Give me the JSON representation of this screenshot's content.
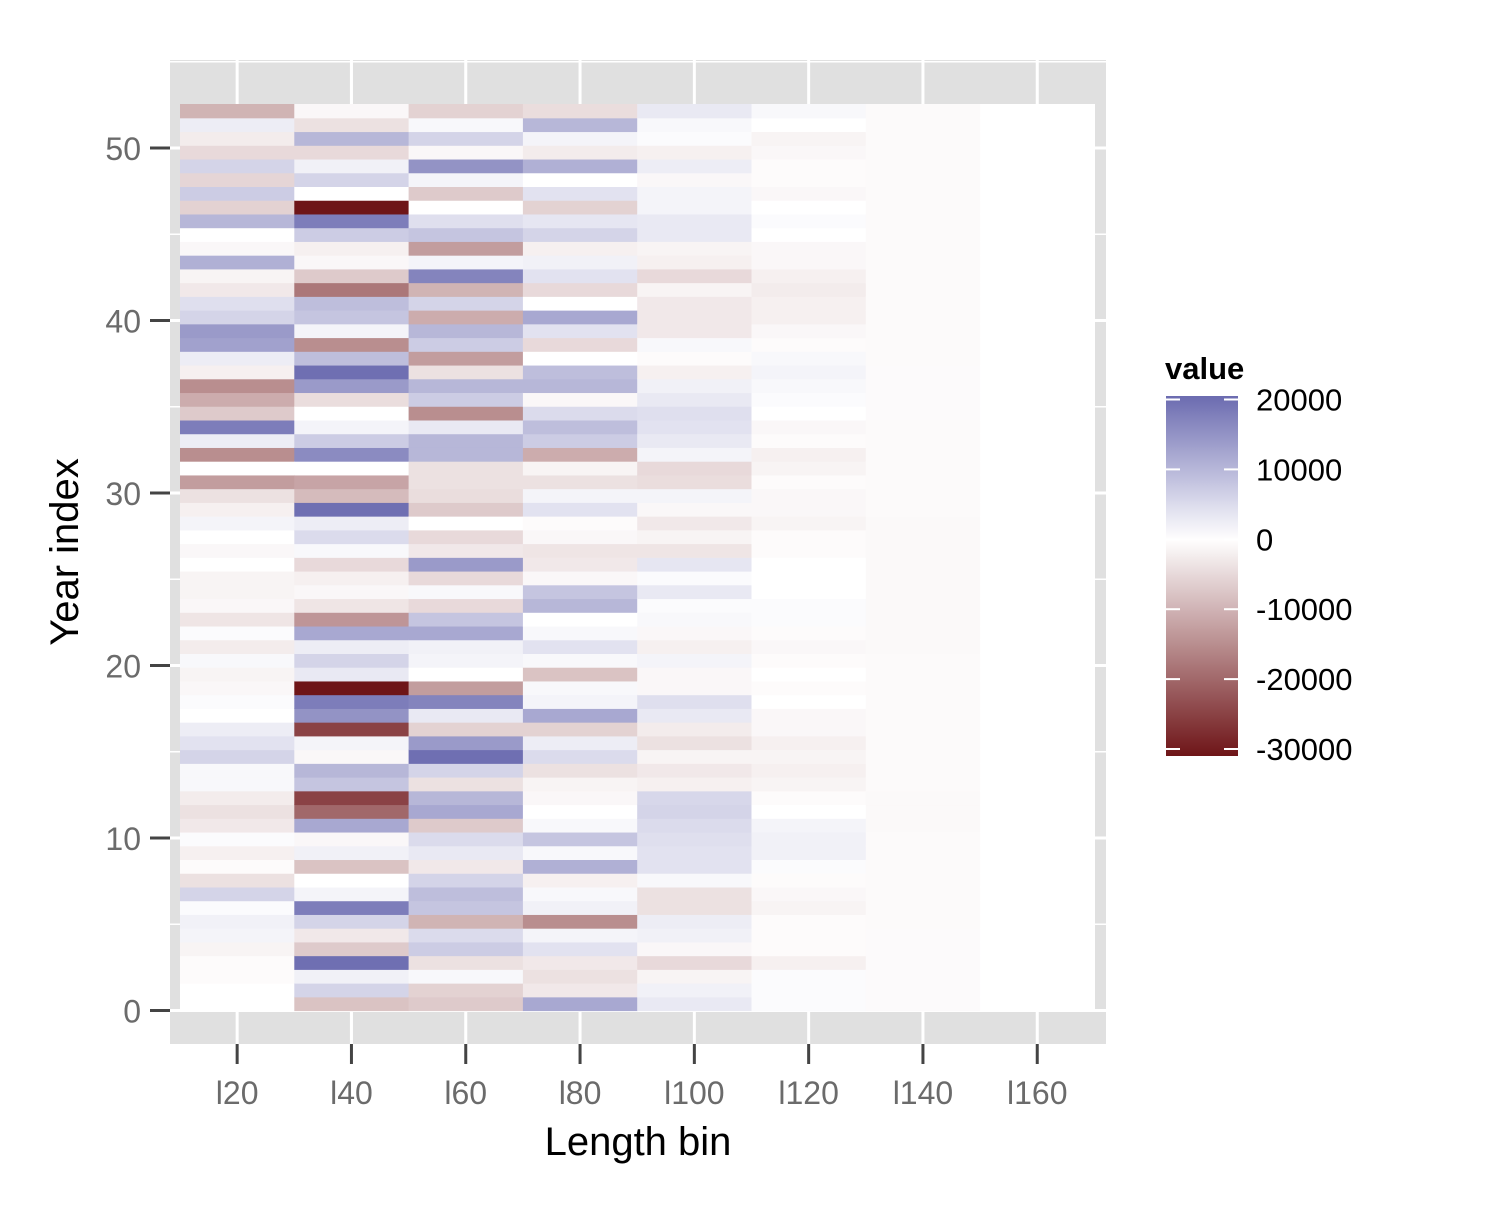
{
  "chart_data": {
    "type": "heatmap",
    "xlabel": "Length bin",
    "ylabel": "Year index",
    "categories": [
      "l20",
      "l40",
      "l60",
      "l80",
      "l100",
      "l120",
      "l140",
      "l160"
    ],
    "x_ticks": [
      "l20",
      "l40",
      "l60",
      "l80",
      "l100",
      "l120",
      "l140",
      "l160"
    ],
    "y_ticks": [
      0,
      10,
      20,
      30,
      40,
      50
    ],
    "ylim": [
      0,
      52
    ],
    "grid": true,
    "legend": {
      "title": "value",
      "position": "right",
      "ticks": [
        20000,
        10000,
        0,
        -10000,
        -20000,
        -30000
      ],
      "tick_labels": [
        "20000",
        "10000",
        "0",
        "-10000",
        "-20000",
        "-30000"
      ],
      "range": [
        -31000,
        20500
      ]
    },
    "colors": {
      "high": "#6b6bb0",
      "mid": "#ffffff",
      "low": "#6e1518",
      "panel": "#e0e0e0",
      "grid": "#ffffff",
      "tick_text": "#6b6b6b"
    },
    "columns": [
      {
        "bin": "l20",
        "values": [
          0,
          0,
          -500,
          -500,
          -1500,
          1500,
          2000,
          500,
          6000,
          -4000,
          -500,
          -2000,
          500,
          -3000,
          -4000,
          -2500,
          1000,
          1000,
          6000,
          4000,
          2500,
          0,
          500,
          -1000,
          -1500,
          1000,
          -2500,
          500,
          -3500,
          -1000,
          -1500,
          -1500,
          0,
          -1000,
          0,
          1500,
          -2000,
          -4000,
          -13000,
          0,
          -15000,
          2500,
          18000,
          -7000,
          -11000,
          -15000,
          -2000,
          2500,
          13000,
          14000,
          6000,
          4500,
          -3000,
          -1500,
          11000,
          -1000,
          0,
          10000,
          -6000,
          7000,
          -5500,
          6000,
          -5000,
          -2500,
          2500,
          -10000
        ]
      },
      {
        "bin": "l40",
        "values": [
          -8000,
          6000,
          2000,
          20000,
          -7000,
          -3000,
          6000,
          18000,
          1500,
          0,
          -8000,
          2000,
          -1000,
          12000,
          -20000,
          -25000,
          8000,
          10000,
          -1000,
          1500,
          -25000,
          15000,
          18000,
          -33000,
          3000,
          6000,
          2500,
          12000,
          -14000,
          -3500,
          -1000,
          -2000,
          -5000,
          1000,
          5000,
          2500,
          20000,
          -9000,
          -12000,
          0,
          16000,
          7000,
          1500,
          0,
          -4500,
          14000,
          20000,
          9000,
          -15000,
          1500,
          8000,
          9000,
          -18000,
          -7000,
          -1000,
          -2000,
          7000,
          18000,
          -35000,
          0,
          6000,
          2000,
          -5000,
          10000,
          -4000,
          -1000
        ]
      },
      {
        "bin": "l60",
        "values": [
          -7000,
          -6000,
          1000,
          -4000,
          7000,
          5000,
          -10000,
          8000,
          9000,
          6000,
          -3000,
          3000,
          5000,
          -7000,
          12000,
          10000,
          -4000,
          6000,
          20000,
          14000,
          -6000,
          3000,
          17000,
          -13000,
          0,
          1500,
          2000,
          12000,
          8000,
          -5000,
          1000,
          -5000,
          14000,
          -3000,
          -5000,
          0,
          -7000,
          -4500,
          -4000,
          -4000,
          10000,
          10000,
          3000,
          -15000,
          7000,
          10000,
          -4000,
          -13000,
          7000,
          10000,
          -11000,
          6000,
          -10000,
          17000,
          1500,
          -13000,
          8000,
          4500,
          0,
          -7000,
          1500,
          15000,
          -1000,
          6000,
          1000,
          -6000
        ]
      },
      {
        "bin": "l80",
        "values": [
          12000,
          -3000,
          -4000,
          -3000,
          4000,
          1500,
          -15000,
          2000,
          1000,
          -2000,
          11000,
          1000,
          8000,
          1000,
          0,
          -1000,
          -1500,
          -4000,
          5000,
          2500,
          -6000,
          12000,
          1500,
          1000,
          -8000,
          1000,
          4000,
          1000,
          0,
          10000,
          8000,
          -1000,
          -3000,
          -3500,
          -1000,
          -500,
          4000,
          1500,
          -4000,
          -1500,
          -11000,
          7000,
          9000,
          5000,
          -1000,
          10000,
          9000,
          0,
          -5000,
          4000,
          12000,
          0,
          -5000,
          4000,
          2000,
          -2000,
          6000,
          3500,
          -6000,
          4000,
          0,
          11000,
          -2500,
          1500,
          10000,
          -4500
        ]
      },
      {
        "bin": "l100",
        "values": [
          3000,
          2000,
          -1500,
          -5000,
          -1000,
          2000,
          2500,
          -4000,
          -4000,
          1000,
          4000,
          4000,
          4500,
          5000,
          6000,
          5500,
          -2000,
          -3000,
          -1500,
          -4000,
          -2500,
          3000,
          4500,
          -1000,
          -1000,
          1500,
          -2000,
          -1000,
          1000,
          500,
          3000,
          500,
          3500,
          -3500,
          -1500,
          -3000,
          -1000,
          1500,
          -4500,
          -5000,
          1500,
          3000,
          4000,
          4500,
          3000,
          2000,
          -2000,
          -500,
          1000,
          -3000,
          -3000,
          -3000,
          -1500,
          -5000,
          -2000,
          -1500,
          3000,
          3000,
          1500,
          1500,
          -1000,
          2500,
          -2000,
          500,
          1000,
          3000
        ]
      },
      {
        "bin": "l120",
        "values": [
          500,
          500,
          500,
          -2000,
          -500,
          -500,
          -500,
          -1500,
          -1000,
          -500,
          500,
          2000,
          2000,
          1500,
          0,
          -500,
          -1500,
          -2000,
          -1500,
          -2000,
          -1000,
          -1000,
          0,
          -500,
          0,
          -500,
          -1000,
          -500,
          500,
          500,
          0,
          0,
          0,
          -500,
          -500,
          -1500,
          -1000,
          -1000,
          -500,
          -1500,
          -2000,
          -500,
          -1000,
          0,
          500,
          1000,
          1500,
          1000,
          -500,
          -1000,
          -2000,
          -2000,
          -2500,
          -2000,
          -1000,
          -1000,
          0,
          500,
          0,
          -1000,
          -500,
          -500,
          -1000,
          -1500,
          0,
          1000
        ]
      },
      {
        "bin": "l140",
        "values": [
          -600,
          -600,
          -600,
          -600,
          -600,
          -600,
          -700,
          -700,
          -700,
          -700,
          -700,
          -700,
          -700,
          -800,
          -800,
          -800,
          -700,
          -700,
          -700,
          -700,
          -700,
          -700,
          -700,
          -700,
          -700,
          -700,
          -800,
          -800,
          -800,
          -800,
          -800,
          -800,
          -800,
          -800,
          -800,
          -800,
          -700,
          -700,
          -700,
          -700,
          -700,
          -700,
          -700,
          -600,
          -600,
          -600,
          -600,
          -700,
          -700,
          -700,
          -700,
          -700,
          -700,
          -700,
          -700,
          -700,
          -700,
          -700,
          -700,
          -700,
          -700,
          -700,
          -700,
          -700,
          -700,
          -700
        ]
      },
      {
        "bin": "l160",
        "values": [
          0,
          0,
          0,
          0,
          0,
          0,
          0,
          0,
          0,
          0,
          0,
          0,
          0,
          0,
          0,
          0,
          0,
          0,
          0,
          0,
          0,
          0,
          0,
          0,
          0,
          0,
          0,
          0,
          0,
          0,
          0,
          0,
          0,
          0,
          0,
          0,
          0,
          0,
          0,
          0,
          0,
          0,
          0,
          0,
          0,
          0,
          0,
          0,
          0,
          0,
          0,
          0,
          0,
          0,
          0,
          0,
          0,
          0,
          0,
          0,
          0,
          0,
          0,
          0,
          0,
          0
        ]
      }
    ]
  }
}
